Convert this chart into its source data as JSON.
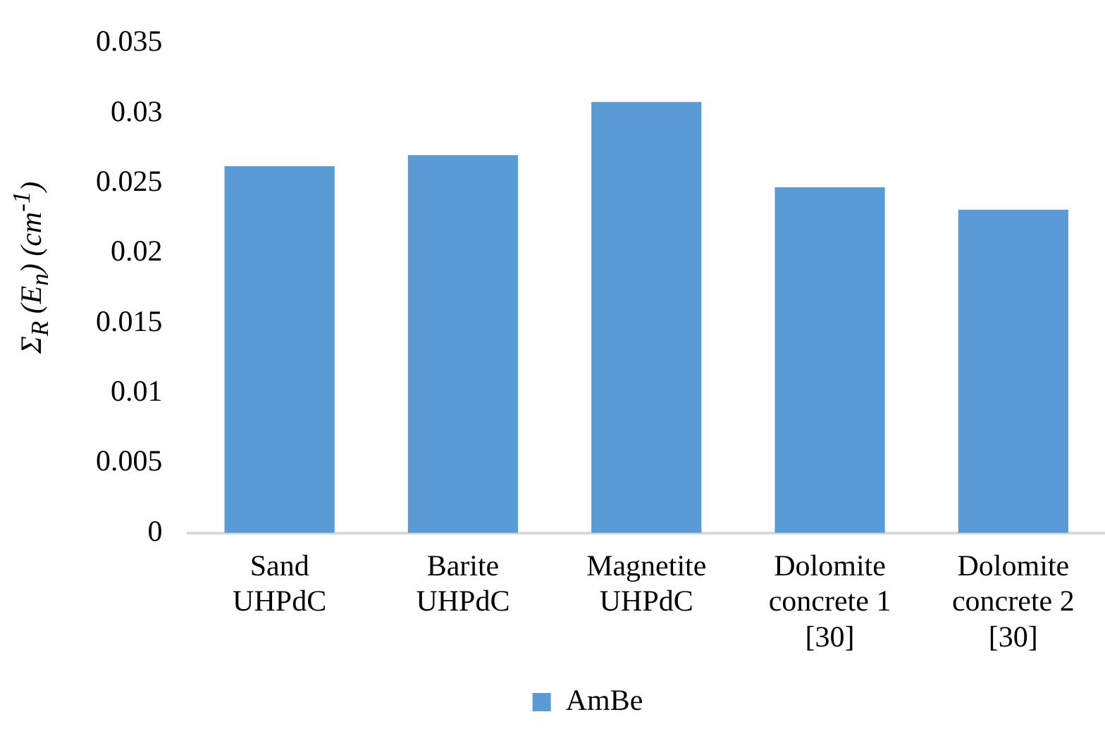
{
  "chart_data": {
    "type": "bar",
    "ylabel": "Σ$_{R}$ (E$_{n}$) (cm$^{-1}$)",
    "categories": [
      "Sand\nUHPdC",
      "Barite\nUHPdC",
      "Magnetite\nUHPdC",
      "Dolomite\nconcrete 1\n[30]",
      "Dolomite\nconcrete 2\n[30]"
    ],
    "series": [
      {
        "name": "AmBe",
        "color": "#5b9bd5",
        "values": [
          0.0262,
          0.027,
          0.0308,
          0.0247,
          0.0231
        ]
      }
    ],
    "ylim": [
      0,
      0.035
    ],
    "yticks": [
      0,
      0.005,
      0.01,
      0.015,
      0.02,
      0.025,
      0.03,
      0.035
    ],
    "grid": false,
    "legend": "bottom"
  }
}
